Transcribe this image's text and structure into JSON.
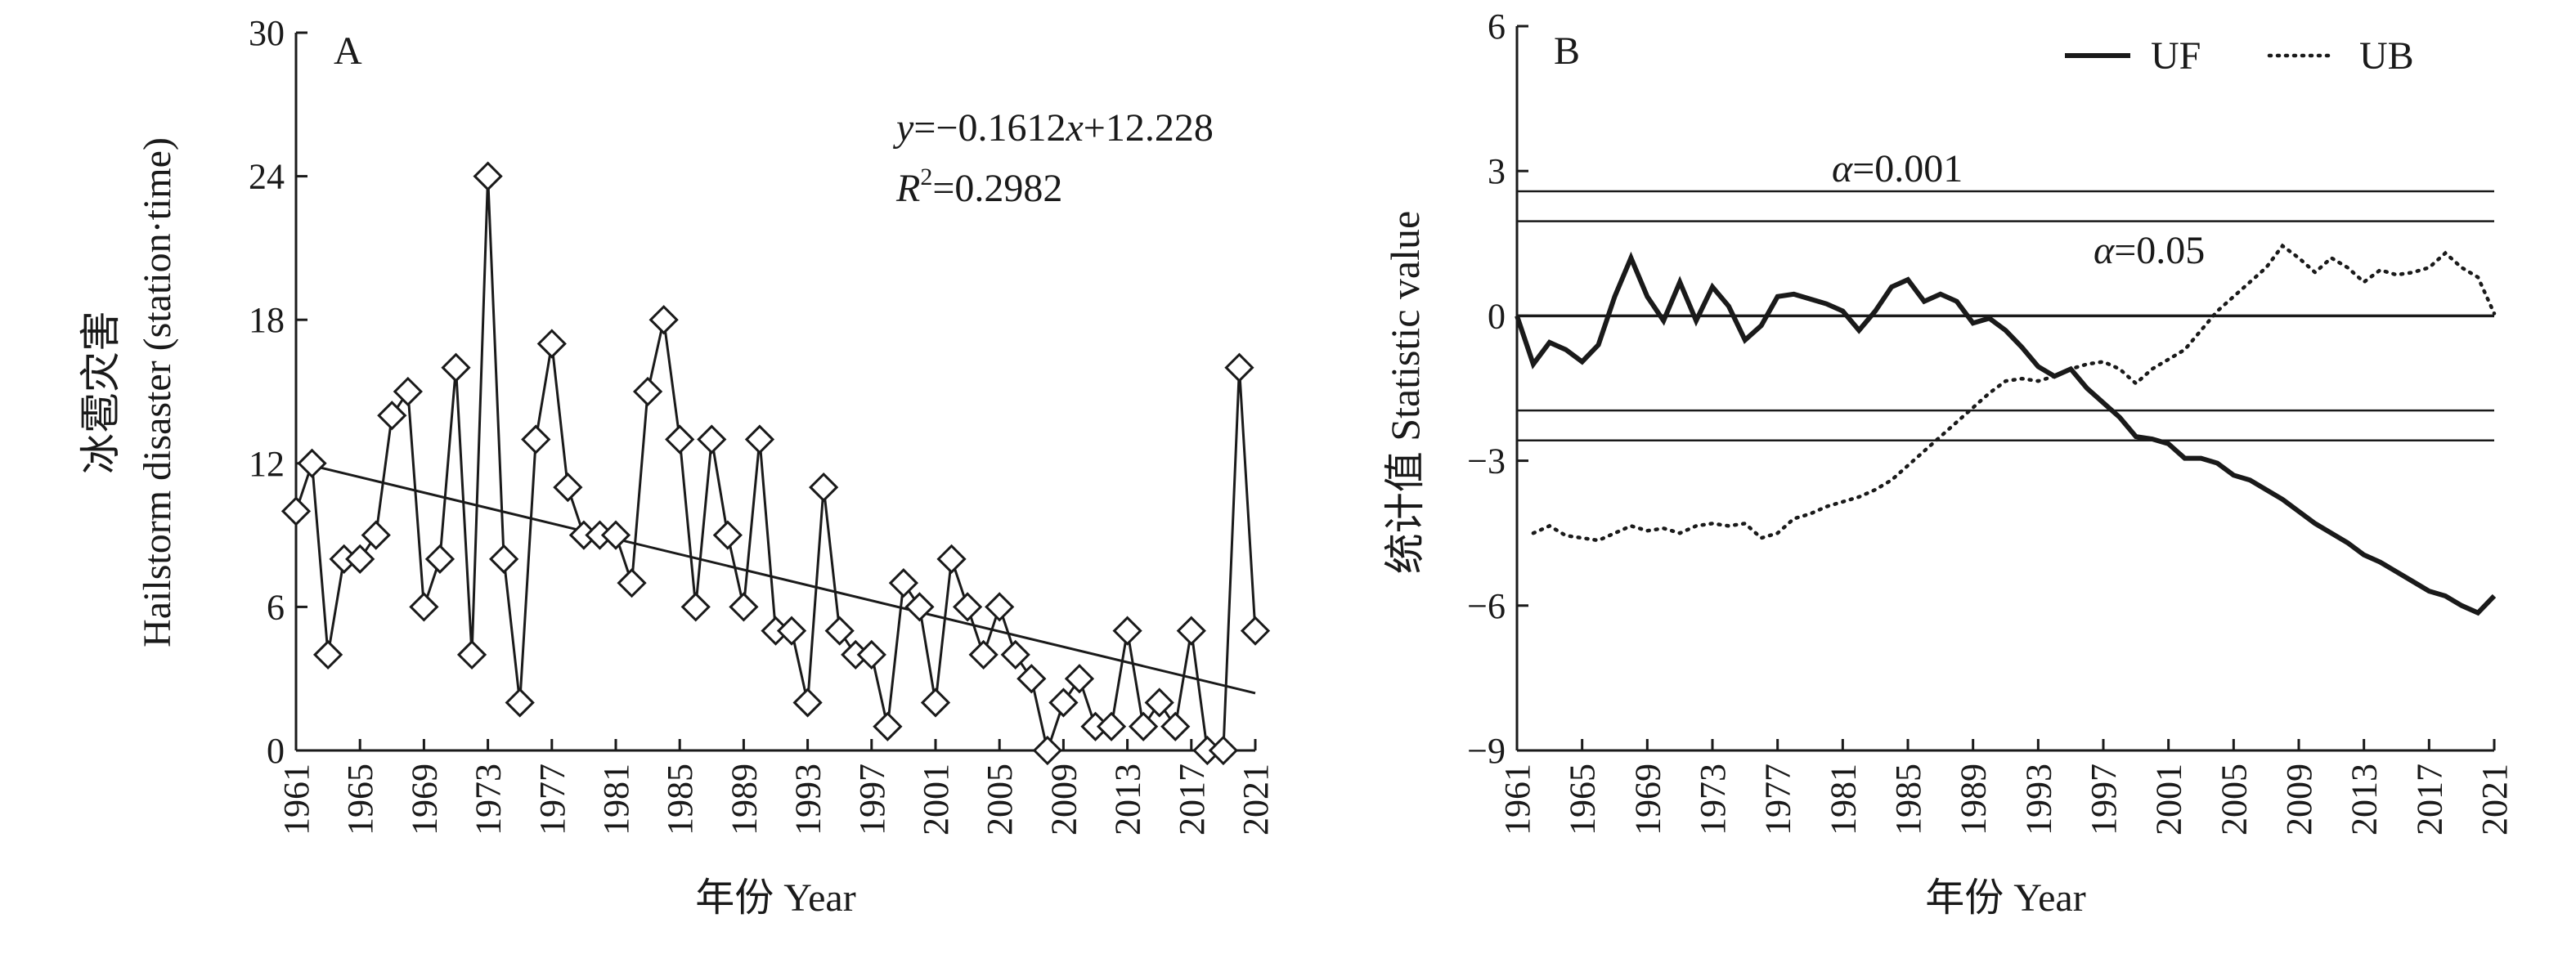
{
  "chart_data": [
    {
      "panel": "A",
      "type": "line",
      "ylabel_cn": "冰雹灾害",
      "ylabel_en": "Hailstorm disaster (station·time)",
      "xlabel": "年份 Year",
      "xlim": [
        1961,
        2021
      ],
      "ylim": [
        0,
        30
      ],
      "x_ticks": [
        "1961",
        "1965",
        "1969",
        "1973",
        "1977",
        "1981",
        "1985",
        "1989",
        "1993",
        "1997",
        "2001",
        "2005",
        "2009",
        "2013",
        "2017",
        "2021"
      ],
      "y_ticks": [
        "0",
        "6",
        "12",
        "18",
        "24",
        "30"
      ],
      "equation": {
        "y": "y",
        "eq": "=−0.1612",
        "x": "x",
        "rest": "+12.228",
        "r": "R",
        "sup": "2",
        "r_rest": "=0.2982"
      },
      "trend": {
        "slope": -0.1612,
        "intercept": 12.228
      },
      "series": [
        {
          "marker": "diamond",
          "x": [
            1961,
            1962,
            1963,
            1964,
            1965,
            1966,
            1967,
            1968,
            1969,
            1970,
            1971,
            1972,
            1973,
            1974,
            1975,
            1976,
            1977,
            1978,
            1979,
            1980,
            1981,
            1982,
            1983,
            1984,
            1985,
            1986,
            1987,
            1988,
            1989,
            1990,
            1991,
            1992,
            1993,
            1994,
            1995,
            1996,
            1997,
            1998,
            1999,
            2000,
            2001,
            2002,
            2003,
            2004,
            2005,
            2006,
            2007,
            2008,
            2009,
            2010,
            2011,
            2012,
            2013,
            2014,
            2015,
            2016,
            2017,
            2018,
            2019,
            2020
          ],
          "values": [
            10,
            12,
            4,
            8,
            8,
            9,
            14,
            15,
            6,
            8,
            16,
            4,
            24,
            8,
            2,
            13,
            17,
            11,
            9,
            9,
            9,
            7,
            15,
            18,
            13,
            6,
            13,
            9,
            6,
            13,
            5,
            5,
            2,
            11,
            5,
            4,
            4,
            1,
            7,
            6,
            2,
            8,
            6,
            4,
            6,
            4,
            3,
            0,
            2,
            3,
            1,
            1,
            5,
            1,
            2,
            1,
            5,
            0,
            0,
            16
          ]
        }
      ],
      "extra_point": {
        "x": 2021,
        "y": 5
      }
    },
    {
      "panel": "B",
      "type": "line",
      "ylabel_cn": "统计值",
      "ylabel_en": "Statistic value",
      "xlabel": "年份 Year",
      "xlim": [
        1961,
        2021
      ],
      "ylim": [
        -9,
        6
      ],
      "x_ticks": [
        "1961",
        "1965",
        "1969",
        "1973",
        "1977",
        "1981",
        "1985",
        "1989",
        "1993",
        "1997",
        "2001",
        "2005",
        "2009",
        "2013",
        "2017",
        "2021"
      ],
      "y_ticks": [
        "−9",
        "−6",
        "−3",
        "0",
        "3",
        "6"
      ],
      "legend": [
        "UF",
        "UB"
      ],
      "legend_position": "top-right",
      "reference_lines": [
        2.58,
        1.96,
        0,
        -1.96,
        -2.58
      ],
      "alpha_labels": [
        {
          "greek": "α",
          "text": "=0.001",
          "y": 2.58
        },
        {
          "greek": "α",
          "text": "=0.05",
          "y": 1.96
        }
      ],
      "series": [
        {
          "name": "UF",
          "style": "solid",
          "x": [
            1961,
            1962,
            1963,
            1964,
            1965,
            1966,
            1967,
            1968,
            1969,
            1970,
            1971,
            1972,
            1973,
            1974,
            1975,
            1976,
            1977,
            1978,
            1979,
            1980,
            1981,
            1982,
            1983,
            1984,
            1985,
            1986,
            1987,
            1988,
            1989,
            1990,
            1991,
            1992,
            1993,
            1994,
            1995,
            1996,
            1997,
            1998,
            1999,
            2000,
            2001,
            2002,
            2003,
            2004,
            2005,
            2006,
            2007,
            2008,
            2009,
            2010,
            2011,
            2012,
            2013,
            2014,
            2015,
            2016,
            2017,
            2018,
            2019,
            2020,
            2021
          ],
          "values": [
            0,
            -1.0,
            -0.55,
            -0.7,
            -0.95,
            -0.6,
            0.4,
            1.2,
            0.4,
            -0.1,
            0.7,
            -0.1,
            0.6,
            0.2,
            -0.5,
            -0.2,
            0.4,
            0.45,
            0.35,
            0.25,
            0.1,
            -0.3,
            0.1,
            0.6,
            0.75,
            0.3,
            0.45,
            0.3,
            -0.15,
            -0.05,
            -0.3,
            -0.65,
            -1.05,
            -1.25,
            -1.1,
            -1.5,
            -1.8,
            -2.1,
            -2.5,
            -2.55,
            -2.65,
            -2.95,
            -2.95,
            -3.05,
            -3.3,
            -3.4,
            -3.6,
            -3.8,
            -4.05,
            -4.3,
            -4.5,
            -4.7,
            -4.95,
            -5.1,
            -5.3,
            -5.5,
            -5.7,
            -5.8,
            -6.0,
            -6.15,
            -5.8
          ]
        },
        {
          "name": "UB",
          "style": "dotted",
          "x": [
            1962,
            1963,
            1964,
            1965,
            1966,
            1967,
            1968,
            1969,
            1970,
            1971,
            1972,
            1973,
            1974,
            1975,
            1976,
            1977,
            1978,
            1979,
            1980,
            1981,
            1982,
            1983,
            1984,
            1985,
            1986,
            1987,
            1988,
            1989,
            1990,
            1991,
            1992,
            1993,
            1994,
            1995,
            1996,
            1997,
            1998,
            1999,
            2000,
            2001,
            2002,
            2003,
            2004,
            2005,
            2006,
            2007,
            2008,
            2009,
            2010,
            2011,
            2012,
            2013,
            2014,
            2015,
            2016,
            2017,
            2018,
            2019,
            2020,
            2021
          ],
          "values": [
            -4.5,
            -4.35,
            -4.55,
            -4.6,
            -4.65,
            -4.5,
            -4.35,
            -4.45,
            -4.4,
            -4.5,
            -4.35,
            -4.3,
            -4.35,
            -4.3,
            -4.6,
            -4.5,
            -4.2,
            -4.1,
            -3.95,
            -3.85,
            -3.75,
            -3.6,
            -3.4,
            -3.1,
            -2.8,
            -2.5,
            -2.2,
            -1.9,
            -1.6,
            -1.35,
            -1.3,
            -1.35,
            -1.25,
            -1.1,
            -1.0,
            -0.95,
            -1.1,
            -1.4,
            -1.1,
            -0.9,
            -0.7,
            -0.3,
            0.1,
            0.4,
            0.7,
            1.0,
            1.45,
            1.2,
            0.9,
            1.2,
            1.0,
            0.7,
            0.95,
            0.85,
            0.9,
            1.0,
            1.3,
            1.0,
            0.8,
            0.05
          ]
        }
      ]
    }
  ]
}
